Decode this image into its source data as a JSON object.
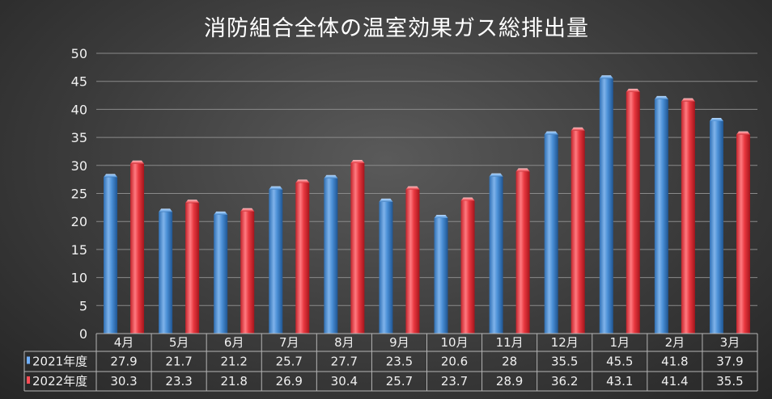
{
  "chart_data": {
    "type": "bar",
    "title": "消防組合全体の温室効果ガス総排出量",
    "categories": [
      "4月",
      "5月",
      "6月",
      "7月",
      "8月",
      "9月",
      "10月",
      "11月",
      "12月",
      "1月",
      "2月",
      "3月"
    ],
    "series": [
      {
        "name": "2021年度",
        "values": [
          27.9,
          21.7,
          21.2,
          25.7,
          27.7,
          23.5,
          20.6,
          28,
          35.5,
          45.5,
          41.8,
          37.9
        ],
        "labels": [
          "27.9",
          "21.7",
          "21.2",
          "25.7",
          "27.7",
          "23.5",
          "20.6",
          "28",
          "35.5",
          "45.5",
          "41.8",
          "37.9"
        ],
        "color": "#4a8fd6"
      },
      {
        "name": "2022年度",
        "values": [
          30.3,
          23.3,
          21.8,
          26.9,
          30.4,
          25.7,
          23.7,
          28.9,
          36.2,
          43.1,
          41.4,
          35.5
        ],
        "labels": [
          "30.3",
          "23.3",
          "21.8",
          "26.9",
          "30.4",
          "25.7",
          "23.7",
          "28.9",
          "36.2",
          "43.1",
          "41.4",
          "35.5"
        ],
        "color": "#e8373f"
      }
    ],
    "yticks": [
      "0",
      "5",
      "10",
      "15",
      "20",
      "25",
      "30",
      "35",
      "40",
      "45",
      "50"
    ],
    "ylim": [
      0,
      50
    ],
    "grid": true,
    "legend": "data-table",
    "data_table": true
  }
}
